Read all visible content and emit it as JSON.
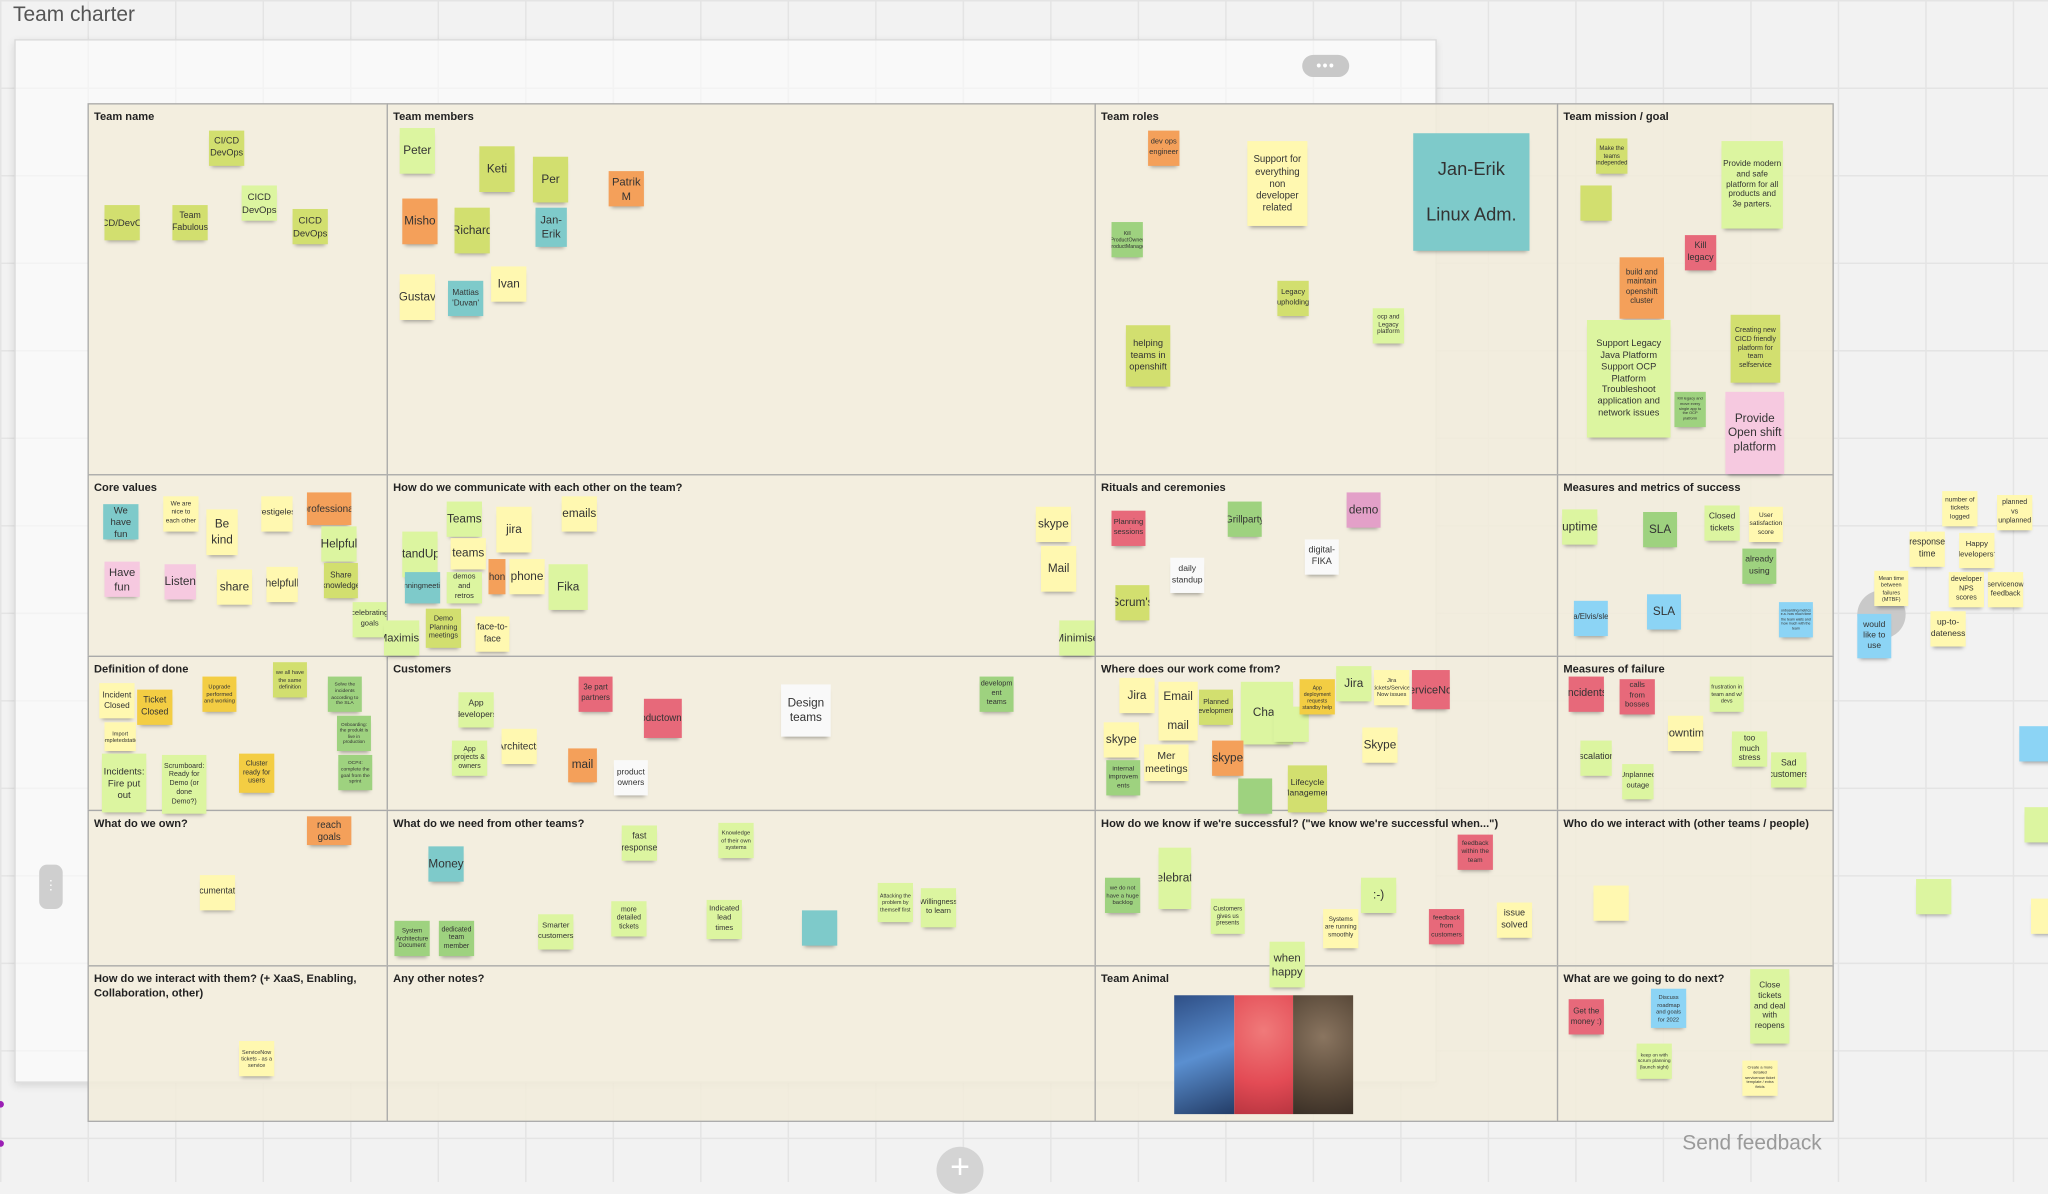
{
  "board": {
    "title": "Team charter",
    "more_label": "•••",
    "send_feedback": "Send feedback",
    "plus_label": "+",
    "handle_label": "⋮"
  },
  "colors": {
    "lime": "#d2df6f",
    "lightgreen": "#dcf5a0",
    "yellow": "#fff8b0",
    "orange": "#f4a05a",
    "teal": "#7ecaca",
    "green": "#9ed27f",
    "red": "#e7697a",
    "pink": "#f6c9e0",
    "blue": "#8cd4f5",
    "white": "#f9f9f9",
    "gold": "#f3cd43",
    "magenta": "#e3a0c8"
  },
  "sections": [
    {
      "title": "Team name"
    },
    {
      "title": "Team members"
    },
    {
      "title": "Team roles"
    },
    {
      "title": "Team mission / goal"
    },
    {
      "title": "Core values"
    },
    {
      "title": "How do we communicate with each other on the team?"
    },
    {
      "title": "Rituals and ceremonies"
    },
    {
      "title": "Measures and metrics of success"
    },
    {
      "title": "Definition of done"
    },
    {
      "title": "Customers"
    },
    {
      "title": "Where does our work come from?"
    },
    {
      "title": "Measures of failure"
    },
    {
      "title": "What do we own?"
    },
    {
      "title": "What do we need from other teams?"
    },
    {
      "title": "How do we know if we're successful? (\"we know we're successful when...\")"
    },
    {
      "title": "Who do we interact with (other teams / people)"
    },
    {
      "title": "How do we interact with them? (+ XaaS, Enabling, Collaboration, other)"
    },
    {
      "title": "Any other notes?"
    },
    {
      "title": "Team Animal"
    },
    {
      "title": "What are we going to do next?"
    }
  ],
  "team_animal_image": {
    "description_colors": [
      "#4a78b8",
      "#e8555a",
      "#6e5a45"
    ]
  },
  "stickies": [
    {
      "text": "CI/CD DevOps",
      "color": "lime"
    },
    {
      "text": "CICD/DevOps",
      "color": "lime"
    },
    {
      "text": "Team Fabulous",
      "color": "lime"
    },
    {
      "text": "CICD DevOps",
      "color": "lightgreen"
    },
    {
      "text": "CICD DevOps",
      "color": "lime"
    },
    {
      "text": "Peter",
      "color": "lightgreen"
    },
    {
      "text": "Keti",
      "color": "lime"
    },
    {
      "text": "Per",
      "color": "lime"
    },
    {
      "text": "Patrik M",
      "color": "orange"
    },
    {
      "text": "Misho",
      "color": "orange"
    },
    {
      "text": "Richard",
      "color": "lime"
    },
    {
      "text": "Jan-Erik",
      "color": "teal"
    },
    {
      "text": "Gustav",
      "color": "yellow"
    },
    {
      "text": "Mattias 'Duvan'",
      "color": "teal"
    },
    {
      "text": "Ivan",
      "color": "yellow"
    },
    {
      "text": "dev ops engineer",
      "color": "orange"
    },
    {
      "text": "Support for everything non developer related",
      "color": "yellow"
    },
    {
      "text": "Jan-Erik\n\nLinux Adm.",
      "color": "teal"
    },
    {
      "text": "Kill ProductOwner ProductManager",
      "color": "green"
    },
    {
      "text": "Legacy upholding",
      "color": "lime"
    },
    {
      "text": "ocp and Legacy platform",
      "color": "lightgreen"
    },
    {
      "text": "helping teams in openshift",
      "color": "lime"
    },
    {
      "text": "Make the teams independed",
      "color": "lime"
    },
    {
      "text": "",
      "color": "lime"
    },
    {
      "text": "Provide modern and safe platform for all products and 3e parters.",
      "color": "lightgreen"
    },
    {
      "text": "Kill legacy",
      "color": "red"
    },
    {
      "text": "build and maintain openshift cluster",
      "color": "orange"
    },
    {
      "text": "Support Legacy Java Platform Support OCP Platform Troubleshoot application and network issues",
      "color": "lightgreen"
    },
    {
      "text": "Kill legacy and move every single app to the OCP platform",
      "color": "green"
    },
    {
      "text": "Creating new CICD friendly platform for team selfservice",
      "color": "lime"
    },
    {
      "text": "Provide Open shift platform",
      "color": "pink"
    },
    {
      "text": "We have fun",
      "color": "teal"
    },
    {
      "text": "We are nice to each other",
      "color": "yellow"
    },
    {
      "text": "Be kind",
      "color": "yellow"
    },
    {
      "text": "prestigeless",
      "color": "yellow"
    },
    {
      "text": "professional",
      "color": "orange"
    },
    {
      "text": "Helpful",
      "color": "lightgreen"
    },
    {
      "text": "Have fun",
      "color": "pink"
    },
    {
      "text": "Listen",
      "color": "pink"
    },
    {
      "text": "share",
      "color": "yellow"
    },
    {
      "text": "helpfull",
      "color": "yellow"
    },
    {
      "text": "Share knowledge",
      "color": "lime"
    },
    {
      "text": "celebrating goals",
      "color": "lightgreen"
    },
    {
      "text": "StandUps",
      "color": "lightgreen"
    },
    {
      "text": "Teams",
      "color": "lightgreen"
    },
    {
      "text": "teams",
      "color": "yellow"
    },
    {
      "text": "jira",
      "color": "yellow"
    },
    {
      "text": "emails",
      "color": "yellow"
    },
    {
      "text": "phone",
      "color": "orange"
    },
    {
      "text": "phone",
      "color": "yellow"
    },
    {
      "text": "Fika",
      "color": "lightgreen"
    },
    {
      "text": "Planningmeetings",
      "color": "teal"
    },
    {
      "text": "demos and retros",
      "color": "lightgreen"
    },
    {
      "text": "Demo Planning meetings",
      "color": "lime"
    },
    {
      "text": "face-to-face",
      "color": "yellow"
    },
    {
      "text": "Maximise",
      "color": "lightgreen"
    },
    {
      "text": "skype",
      "color": "yellow"
    },
    {
      "text": "Mail",
      "color": "yellow"
    },
    {
      "text": "Minimise",
      "color": "lightgreen"
    },
    {
      "text": "Planning sessions",
      "color": "red"
    },
    {
      "text": "Grillparty",
      "color": "green"
    },
    {
      "text": "demo",
      "color": "magenta"
    },
    {
      "text": "daily standup",
      "color": "white"
    },
    {
      "text": "digital-FIKA",
      "color": "white"
    },
    {
      "text": "Scrum's",
      "color": "lime"
    },
    {
      "text": "uptime",
      "color": "lightgreen"
    },
    {
      "text": "SLA",
      "color": "green"
    },
    {
      "text": "Closed tickets",
      "color": "lightgreen"
    },
    {
      "text": "User satisfaction score",
      "color": "yellow"
    },
    {
      "text": "already using",
      "color": "green"
    },
    {
      "text": "Jira/Elvis/sleek",
      "color": "blue"
    },
    {
      "text": "SLA",
      "color": "blue"
    },
    {
      "text": "onboarding metrics e.a. how much time the team waits and how much with the team",
      "color": "blue"
    },
    {
      "text": "Incident Closed",
      "color": "yellow"
    },
    {
      "text": "Ticket Closed",
      "color": "gold"
    },
    {
      "text": "Upgrade performed and working",
      "color": "gold"
    },
    {
      "text": "we all have the same definition",
      "color": "lime"
    },
    {
      "text": "Solve the incidents according to the SLA",
      "color": "green"
    },
    {
      "text": "Import completedstation",
      "color": "yellow"
    },
    {
      "text": "Onboarding: the produkt is live in production",
      "color": "green"
    },
    {
      "text": "OCP4: complete the goal from the sprint",
      "color": "green"
    },
    {
      "text": "Incidents: Fire put out",
      "color": "lightgreen"
    },
    {
      "text": "Scrumboard: Ready for Demo (or done Demo?)",
      "color": "lightgreen"
    },
    {
      "text": "Cluster ready for users",
      "color": "gold"
    },
    {
      "text": "App developers",
      "color": "lightgreen"
    },
    {
      "text": "3e part partners",
      "color": "red"
    },
    {
      "text": "Productowners",
      "color": "red"
    },
    {
      "text": "Design teams",
      "color": "white"
    },
    {
      "text": "developm ent teams",
      "color": "green"
    },
    {
      "text": "App projects & owners",
      "color": "lightgreen"
    },
    {
      "text": "Architects",
      "color": "yellow"
    },
    {
      "text": "mail",
      "color": "orange"
    },
    {
      "text": "product owners",
      "color": "white"
    },
    {
      "text": "Jira",
      "color": "yellow"
    },
    {
      "text": "Email\n\nmail",
      "color": "yellow"
    },
    {
      "text": "Planned developments",
      "color": "lime"
    },
    {
      "text": "Chatt",
      "color": "lightgreen"
    },
    {
      "text": "",
      "color": "lightgreen"
    },
    {
      "text": "App deployment requests standby help",
      "color": "gold"
    },
    {
      "text": "Jira",
      "color": "lightgreen"
    },
    {
      "text": "Jira tickets/Service Now issues",
      "color": "yellow"
    },
    {
      "text": "ServiceNow",
      "color": "red"
    },
    {
      "text": "skype",
      "color": "yellow"
    },
    {
      "text": "Mer meetings",
      "color": "yellow"
    },
    {
      "text": "skype",
      "color": "orange"
    },
    {
      "text": "Skype",
      "color": "yellow"
    },
    {
      "text": "internal improvem ents",
      "color": "green"
    },
    {
      "text": "Lifecycle Management",
      "color": "lime"
    },
    {
      "text": "",
      "color": "green"
    },
    {
      "text": "incidents",
      "color": "red"
    },
    {
      "text": "calls from bosses",
      "color": "red"
    },
    {
      "text": "frustration in team and w/ devs",
      "color": "lightgreen"
    },
    {
      "text": "Downtime",
      "color": "yellow"
    },
    {
      "text": "Escalations",
      "color": "lightgreen"
    },
    {
      "text": "too much stress",
      "color": "lightgreen"
    },
    {
      "text": "Unplanned outage",
      "color": "lightgreen"
    },
    {
      "text": "Sad customers",
      "color": "lightgreen"
    },
    {
      "text": "number of tickets logged",
      "color": "yellow"
    },
    {
      "text": "planned vs unplanned",
      "color": "yellow"
    },
    {
      "text": "response time",
      "color": "yellow"
    },
    {
      "text": "Happy developers?",
      "color": "yellow"
    },
    {
      "text": "Mean time between failures (MTBF)",
      "color": "yellow"
    },
    {
      "text": "developer NPS scores",
      "color": "yellow"
    },
    {
      "text": "servicenow feedback",
      "color": "yellow"
    },
    {
      "text": "up-to-dateness",
      "color": "yellow"
    },
    {
      "text": "would like to use",
      "color": "blue"
    },
    {
      "text": "",
      "color": "blue"
    },
    {
      "text": "",
      "color": "lightgreen"
    },
    {
      "text": "",
      "color": "yellow"
    },
    {
      "text": "",
      "color": "lightgreen"
    },
    {
      "text": "reach goals",
      "color": "orange"
    },
    {
      "text": "Documentation",
      "color": "yellow"
    },
    {
      "text": "Money",
      "color": "teal"
    },
    {
      "text": "fast response",
      "color": "lightgreen"
    },
    {
      "text": "Knowledge of their own systems",
      "color": "lightgreen"
    },
    {
      "text": "System Architecture Document",
      "color": "green"
    },
    {
      "text": "dedicated team member",
      "color": "green"
    },
    {
      "text": "Smarter customers",
      "color": "lightgreen"
    },
    {
      "text": "more detailed tickets",
      "color": "lightgreen"
    },
    {
      "text": "Indicated lead times",
      "color": "lightgreen"
    },
    {
      "text": "",
      "color": "teal"
    },
    {
      "text": "Attacking the problem by themself first",
      "color": "lightgreen"
    },
    {
      "text": "Willingness to learn",
      "color": "lightgreen"
    },
    {
      "text": "we do not have a huge backlog",
      "color": "green"
    },
    {
      "text": "celebrate",
      "color": "lightgreen"
    },
    {
      "text": "Customers gives us presents",
      "color": "lightgreen"
    },
    {
      "text": "when happy",
      "color": "lightgreen"
    },
    {
      "text": "Systems are running smoothly",
      "color": "yellow"
    },
    {
      "text": ":-)",
      "color": "lightgreen"
    },
    {
      "text": "feedback within the team",
      "color": "red"
    },
    {
      "text": "feedback from customers",
      "color": "red"
    },
    {
      "text": "issue solved",
      "color": "yellow"
    },
    {
      "text": "",
      "color": "yellow"
    },
    {
      "text": "ServiceNow tickets - as a service",
      "color": "yellow"
    },
    {
      "text": "Get the money :)",
      "color": "red"
    },
    {
      "text": "Discuss roadmap and goals for 2022",
      "color": "blue"
    },
    {
      "text": "Close tickets and deal with reopens",
      "color": "lightgreen"
    },
    {
      "text": "keep on with scrum planning (launch sight)",
      "color": "lightgreen"
    },
    {
      "text": "Create a more detailed servicenow ticket template / extra fields",
      "color": "yellow"
    }
  ]
}
